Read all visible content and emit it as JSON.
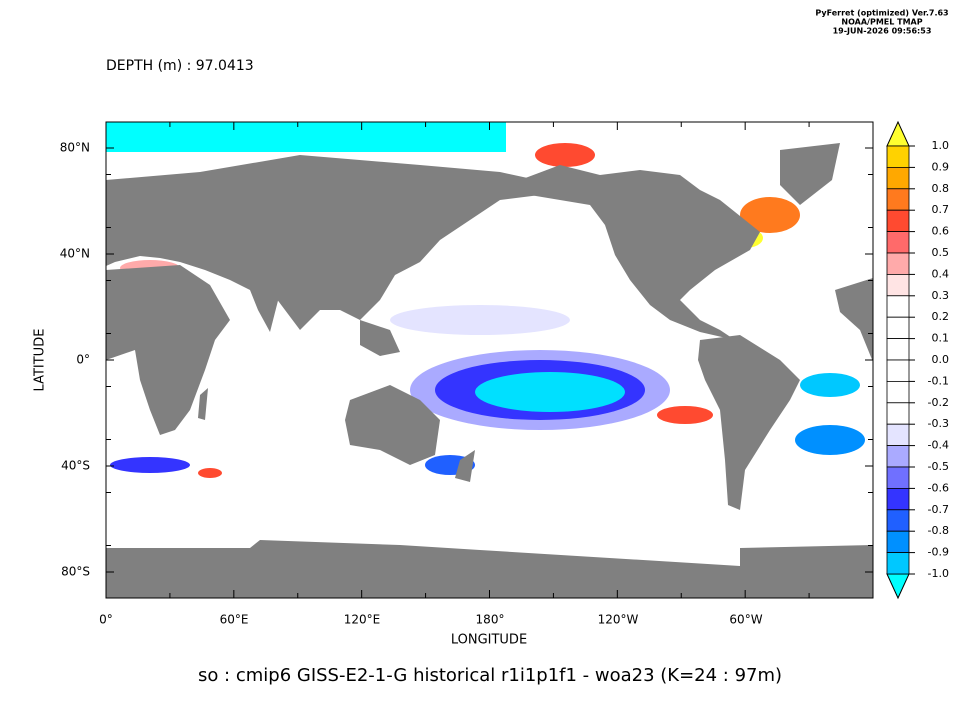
{
  "header": {
    "lines": [
      "PyFerret (optimized) Ver.7.63",
      "NOAA/PMEL TMAP",
      "19-JUN-2026 09:56:53"
    ]
  },
  "subtitle": "DEPTH (m) : 97.0413",
  "title": "so : cmip6 GISS-E2-1-G historical r1i1p1f1 - woa23  (K=24 : 97m)",
  "x_axis": {
    "label": "LONGITUDE",
    "ticks": [
      "0°",
      "60°E",
      "120°E",
      "180°",
      "120°W",
      "60°W"
    ]
  },
  "y_axis": {
    "label": "LATITUDE",
    "ticks": [
      "80°N",
      "40°N",
      "0°",
      "40°S",
      "80°S"
    ]
  },
  "colorbar": {
    "labels": [
      "1.0",
      "0.9",
      "0.8",
      "0.7",
      "0.6",
      "0.5",
      "0.4",
      "0.3",
      "0.2",
      "0.1",
      "0.0",
      "-0.1",
      "-0.2",
      "-0.3",
      "-0.4",
      "-0.5",
      "-0.6",
      "-0.7",
      "-0.8",
      "-0.9",
      "-1.0"
    ],
    "colors": [
      "#ffd200",
      "#ffa800",
      "#ff7a1e",
      "#ff4a30",
      "#ff6a6a",
      "#ffaaaa",
      "#ffe4e4",
      "#ffffff",
      "#ffffff",
      "#ffffff",
      "#ffffff",
      "#ffffff",
      "#ffffff",
      "#e4e4ff",
      "#aaaaff",
      "#7070ff",
      "#3434ff",
      "#2060ff",
      "#0090ff",
      "#00c8ff"
    ],
    "over_color": "#ffff30",
    "under_color": "#00ffff"
  }
}
